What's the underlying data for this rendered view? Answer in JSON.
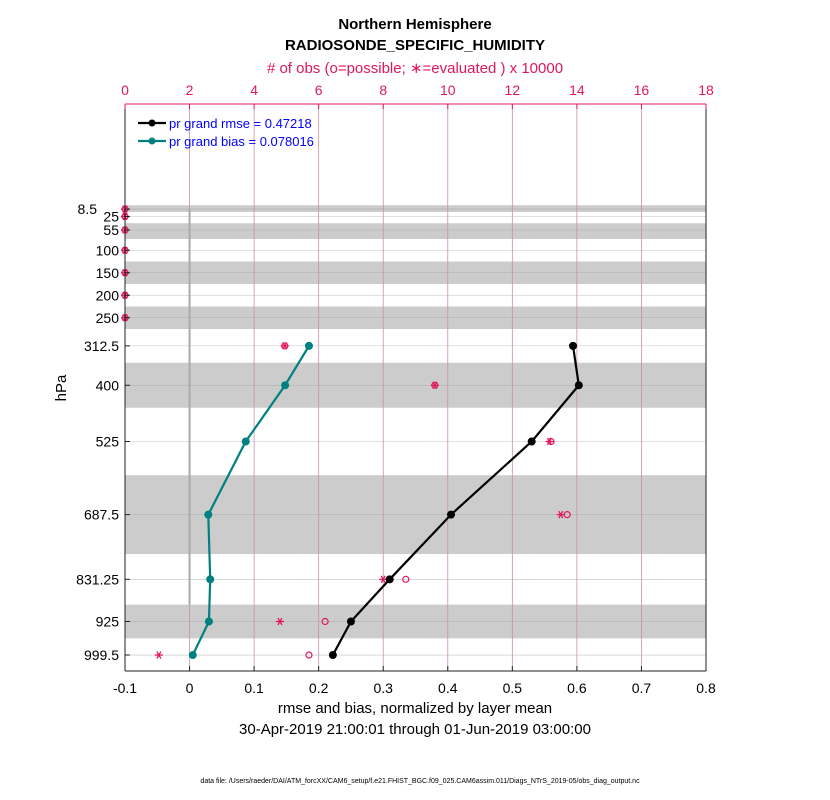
{
  "chart_data": {
    "type": "line",
    "title": "Northern Hemisphere",
    "subtitle": "RADIOSONDE_SPECIFIC_HUMIDITY",
    "top_axis_label": "# of obs (o=possible; ∗=evaluated ) x 10000",
    "xlabel": "rmse and bias, normalized by layer mean",
    "date_range": "30-Apr-2019 21:00:01 through 01-Jun-2019 03:00:00",
    "ylabel": "hPa",
    "xlim": [
      -0.1,
      0.8
    ],
    "xticks": [
      "-0.1",
      "0",
      "0.1",
      "0.2",
      "0.3",
      "0.4",
      "0.5",
      "0.6",
      "0.7",
      "0.8"
    ],
    "top_xlim": [
      0,
      18
    ],
    "top_xticks": [
      "0",
      "2",
      "4",
      "6",
      "8",
      "10",
      "12",
      "14",
      "16",
      "18"
    ],
    "ylim": [
      -225,
      1035
    ],
    "y_inverted": true,
    "levels": [
      8.5,
      25,
      55,
      100,
      150,
      200,
      250,
      312.5,
      400,
      525,
      687.5,
      831.25,
      925,
      999.5
    ],
    "ytick_labels": [
      "8.5",
      "25",
      "55",
      "100",
      "150",
      "200",
      "250",
      "312.5",
      "400",
      "525",
      "687.5",
      "831.25",
      "925",
      "999.5"
    ],
    "layer_bands_hPa": [
      [
        0,
        15
      ],
      [
        40,
        75
      ],
      [
        125,
        175
      ],
      [
        225,
        275
      ],
      [
        350,
        450
      ],
      [
        600,
        775
      ],
      [
        887.5,
        962.5
      ]
    ],
    "legend_position": "top-left",
    "series": [
      {
        "name": "pr grand rmse = 0.47218",
        "color": "#000000",
        "levels": [
          312.5,
          400,
          525,
          687.5,
          831.25,
          925,
          999.5
        ],
        "values": [
          0.594,
          0.603,
          0.53,
          0.405,
          0.31,
          0.25,
          0.222
        ]
      },
      {
        "name": "pr grand bias = 0.078016",
        "color": "#008080",
        "levels": [
          312.5,
          400,
          525,
          687.5,
          831.25,
          925,
          999.5
        ],
        "values": [
          0.185,
          0.148,
          0.087,
          0.029,
          0.032,
          0.03,
          0.005
        ]
      }
    ],
    "obs_possible": [
      0,
      0,
      0,
      0,
      0,
      0,
      0,
      4.95,
      9.6,
      13.2,
      13.7,
      8.7,
      6.2,
      5.7
    ],
    "obs_evaluated": [
      0,
      0,
      0,
      0,
      0,
      0,
      0,
      4.95,
      9.6,
      13.15,
      13.5,
      8.0,
      4.8,
      1.05
    ],
    "colors": {
      "obs": "#e0185a",
      "legend_text": "#0000ff",
      "band": "#cccccc",
      "grid_v": "#c890a8"
    }
  },
  "footer": "data file: /Users/raeder/DAI/ATM_forcXX/CAM6_setup/f.e21.FHIST_BGC.f09_025.CAM6assim.011/Diags_NTrS_2019-05/obs_diag_output.nc"
}
